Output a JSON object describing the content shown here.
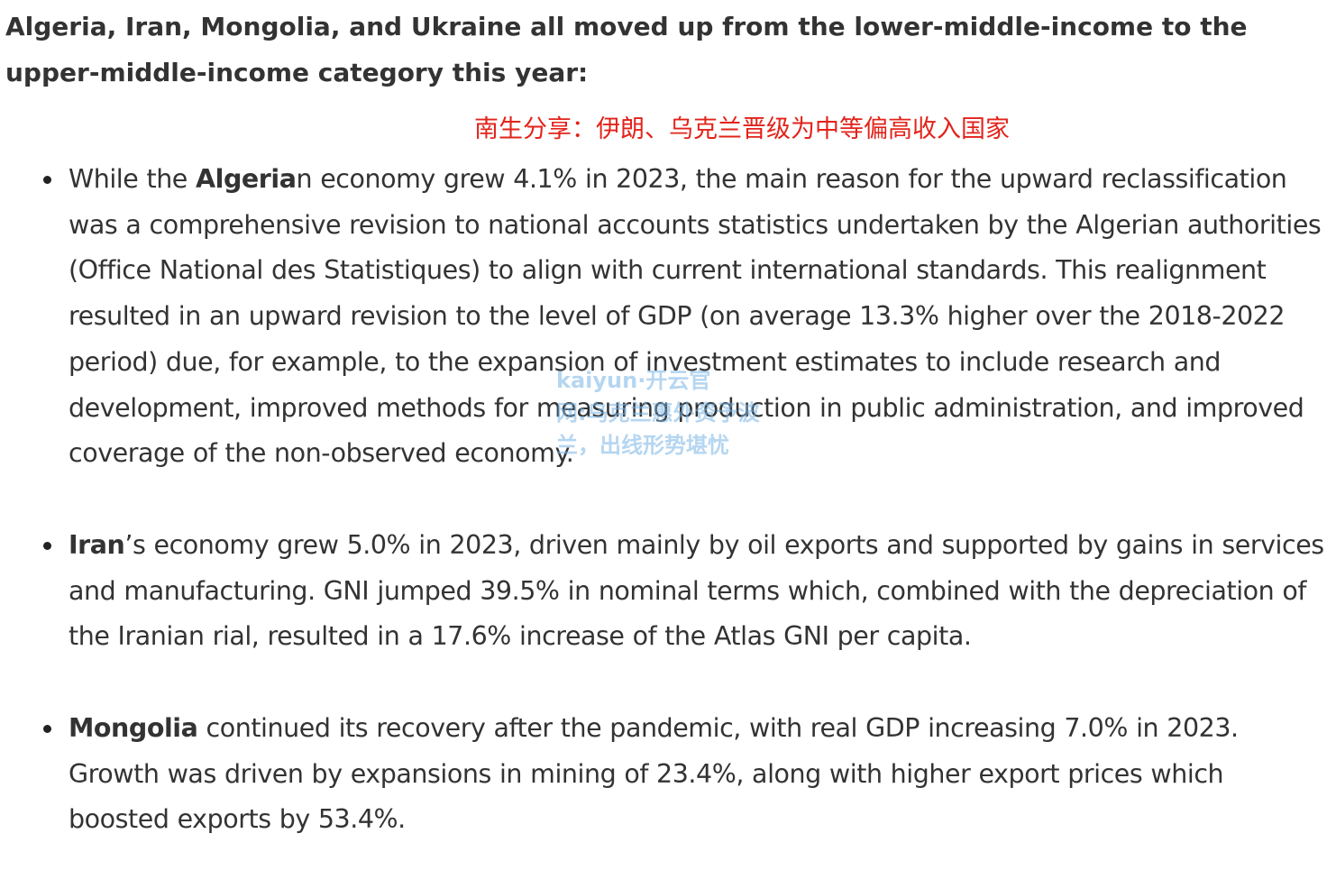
{
  "heading": "Algeria, Iran, Mongolia, and Ukraine all moved up from the lower-middle-income to the upper-middle-income category this year:",
  "subtitle": "南生分享：伊朗、乌克兰晋级为中等偏高收入国家",
  "watermark": {
    "line1": "kaiyun·开云官",
    "line2": "网:乌克兰惠外资予波",
    "line3": "兰，出线形势堪忧"
  },
  "items": [
    {
      "bold_prefix": "Algeria",
      "rest": "n economy grew 4.1% in 2023, the main reason for the upward reclassification was a comprehensive revision to national accounts statistics undertaken by the Algerian authorities (Office National des Statistiques) to align with current international standards. This realignment resulted in an upward revision to the level of GDP (on average 13.3% higher over the 2018-2022 period) due, for example, to the expansion of investment estimates to include research and development, improved methods for measuring production in public administration, and improved coverage of the non-observed economy.",
      "lead": "While the "
    },
    {
      "bold_prefix": "Iran",
      "rest": "’s economy grew 5.0% in 2023, driven mainly by oil exports and supported by gains in services and manufacturing. GNI jumped 39.5% in nominal terms which, combined with the depreciation of the Iranian rial, resulted in a 17.6% increase of the Atlas GNI per capita.",
      "lead": ""
    },
    {
      "bold_prefix": "Mongolia",
      "rest": " continued its recovery after the pandemic, with real GDP increasing 7.0% in 2023. Growth was driven by expansions in mining of 23.4%, along with higher export prices which boosted exports by 53.4%.",
      "lead": ""
    }
  ]
}
